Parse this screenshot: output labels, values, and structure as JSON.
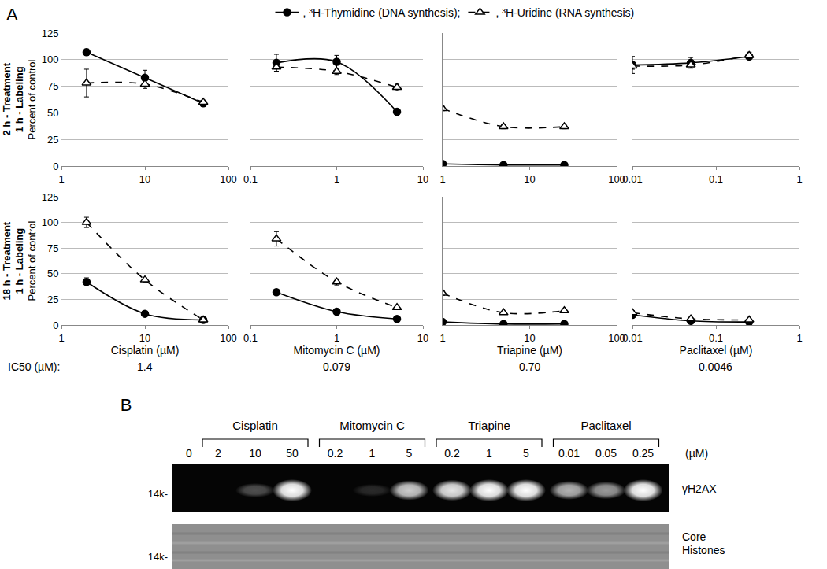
{
  "panel_label": "A",
  "ic50_label": "IC50 (µM):",
  "chart_data": [
    {
      "type": "line",
      "row_label": [
        "2 h - Treatment",
        "1 h - Labeling"
      ],
      "ylabel": "Percent of control",
      "log": "x",
      "grid": true,
      "x": [
        2,
        10,
        50
      ],
      "xlim": [
        1,
        100
      ],
      "xticks": [
        1,
        10,
        100
      ],
      "ylim": [
        0,
        125
      ],
      "yticks": [
        0,
        25,
        50,
        75,
        100,
        125
      ],
      "series": [
        {
          "name": ", ³H-Thymidine (DNA synthesis);",
          "color": "#000000",
          "marker": "circle",
          "line_style": "solid",
          "values": [
            107,
            83,
            59
          ],
          "errors": [
            3,
            7,
            2
          ]
        },
        {
          "name": ", ³H-Uridine (RNA synthesis)",
          "color": "#000000",
          "marker": "triangle-open",
          "line_style": "dashed",
          "values": [
            78,
            77,
            60
          ],
          "errors": [
            13,
            4,
            4
          ]
        }
      ]
    },
    {
      "type": "line",
      "tick_labels": "x",
      "log": "x",
      "grid": true,
      "x": [
        0.2,
        1,
        5
      ],
      "xlim": [
        0.1,
        10
      ],
      "xticks": [
        0.1,
        1,
        10
      ],
      "ylim": [
        0,
        125
      ],
      "yticks": [
        0,
        25,
        50,
        75,
        100,
        125
      ],
      "series": [
        {
          "name": ", ³H-Thymidine (DNA synthesis);",
          "color": "#000000",
          "marker": "circle",
          "line_style": "solid",
          "values": [
            97,
            98,
            51
          ],
          "errors": [
            8,
            6,
            2
          ]
        },
        {
          "name": ", ³H-Uridine (RNA synthesis)",
          "color": "#000000",
          "marker": "triangle-open",
          "line_style": "dashed",
          "values": [
            93,
            89,
            74
          ],
          "errors": [
            4,
            3,
            3
          ]
        }
      ]
    },
    {
      "type": "line",
      "tick_labels": "x",
      "log": "x",
      "grid": true,
      "x": [
        1,
        5,
        25
      ],
      "xlim": [
        1,
        100
      ],
      "xticks": [
        1,
        10,
        100
      ],
      "ylim": [
        0,
        125
      ],
      "yticks": [
        0,
        25,
        50,
        75,
        100,
        125
      ],
      "series": [
        {
          "name": ", ³H-Thymidine (DNA synthesis);",
          "color": "#000000",
          "marker": "circle",
          "line_style": "solid",
          "values": [
            2,
            1,
            1
          ],
          "errors": [
            1,
            1,
            1
          ]
        },
        {
          "name": ", ³H-Uridine (RNA synthesis)",
          "color": "#000000",
          "marker": "triangle-open",
          "line_style": "dashed",
          "values": [
            54,
            37,
            37
          ],
          "errors": [
            2,
            2,
            2
          ]
        }
      ]
    },
    {
      "type": "line",
      "tick_labels": "x",
      "log": "x",
      "grid": true,
      "x": [
        0.01,
        0.05,
        0.25
      ],
      "xlim": [
        0.01,
        1
      ],
      "xticks": [
        0.01,
        0.1,
        1
      ],
      "ylim": [
        0,
        125
      ],
      "yticks": [
        0,
        25,
        50,
        75,
        100,
        125
      ],
      "series": [
        {
          "name": ", ³H-Thymidine (DNA synthesis);",
          "color": "#000000",
          "marker": "circle",
          "line_style": "solid",
          "values": [
            95,
            97,
            103
          ],
          "errors": [
            8,
            5,
            4
          ]
        },
        {
          "name": ", ³H-Uridine (RNA synthesis)",
          "color": "#000000",
          "marker": "triangle-open",
          "line_style": "dashed",
          "values": [
            94,
            95,
            104
          ],
          "errors": [
            3,
            3,
            3
          ]
        }
      ]
    },
    {
      "type": "line",
      "row_label": [
        "18 h - Treatment",
        "1 h - Labeling"
      ],
      "ylabel": "Percent of control",
      "xlabel": "Cisplatin (µM)",
      "ic50": "1.4",
      "log": "x",
      "grid": true,
      "x": [
        2,
        10,
        50
      ],
      "xlim": [
        1,
        100
      ],
      "xticks": [
        1,
        10,
        100
      ],
      "ylim": [
        0,
        125
      ],
      "yticks": [
        0,
        25,
        50,
        75,
        100,
        125
      ],
      "series": [
        {
          "name": ", ³H-Thymidine (DNA synthesis);",
          "color": "#000000",
          "marker": "circle",
          "line_style": "solid",
          "values": [
            42,
            11,
            5
          ],
          "errors": [
            4,
            2,
            1
          ]
        },
        {
          "name": ", ³H-Uridine (RNA synthesis)",
          "color": "#000000",
          "marker": "triangle-open",
          "line_style": "dashed",
          "values": [
            100,
            44,
            5
          ],
          "errors": [
            5,
            2,
            1
          ]
        }
      ]
    },
    {
      "type": "line",
      "tick_labels": "x",
      "xlabel": "Mitomycin C (µM)",
      "ic50": "0.079",
      "log": "x",
      "grid": true,
      "x": [
        0.2,
        1,
        5
      ],
      "xlim": [
        0.1,
        10
      ],
      "xticks": [
        0.1,
        1,
        10
      ],
      "ylim": [
        0,
        125
      ],
      "yticks": [
        0,
        25,
        50,
        75,
        100,
        125
      ],
      "series": [
        {
          "name": ", ³H-Thymidine (DNA synthesis);",
          "color": "#000000",
          "marker": "circle",
          "line_style": "solid",
          "values": [
            32,
            13,
            6
          ],
          "errors": [
            2,
            1,
            1
          ]
        },
        {
          "name": ", ³H-Uridine (RNA synthesis)",
          "color": "#000000",
          "marker": "triangle-open",
          "line_style": "dashed",
          "values": [
            84,
            42,
            17
          ],
          "errors": [
            7,
            3,
            2
          ]
        }
      ]
    },
    {
      "type": "line",
      "tick_labels": "x",
      "xlabel": "Triapine (µM)",
      "ic50": "0.70",
      "log": "x",
      "grid": true,
      "x": [
        1,
        5,
        25
      ],
      "xlim": [
        1,
        100
      ],
      "xticks": [
        1,
        10,
        100
      ],
      "ylim": [
        0,
        125
      ],
      "yticks": [
        0,
        25,
        50,
        75,
        100,
        125
      ],
      "series": [
        {
          "name": ", ³H-Thymidine (DNA synthesis);",
          "color": "#000000",
          "marker": "circle",
          "line_style": "solid",
          "values": [
            3,
            1,
            1
          ],
          "errors": [
            1,
            1,
            1
          ]
        },
        {
          "name": ", ³H-Uridine (RNA synthesis)",
          "color": "#000000",
          "marker": "triangle-open",
          "line_style": "dashed",
          "values": [
            31,
            12,
            14
          ],
          "errors": [
            2,
            1,
            1
          ]
        }
      ]
    },
    {
      "type": "line",
      "tick_labels": "x",
      "xlabel": "Paclitaxel (µM)",
      "ic50": "0.0046",
      "log": "x",
      "grid": true,
      "x": [
        0.01,
        0.05,
        0.25
      ],
      "xlim": [
        0.01,
        1
      ],
      "xticks": [
        0.01,
        0.1,
        1
      ],
      "ylim": [
        0,
        125
      ],
      "yticks": [
        0,
        25,
        50,
        75,
        100,
        125
      ],
      "series": [
        {
          "name": ", ³H-Thymidine (DNA synthesis);",
          "color": "#000000",
          "marker": "circle",
          "line_style": "solid",
          "values": [
            10,
            4,
            3
          ],
          "errors": [
            1,
            1,
            1
          ]
        },
        {
          "name": ", ³H-Uridine (RNA synthesis)",
          "color": "#000000",
          "marker": "triangle-open",
          "line_style": "dashed",
          "values": [
            12,
            6,
            5
          ],
          "errors": [
            2,
            1,
            1
          ]
        }
      ]
    }
  ],
  "blot": {
    "panel_label": "B",
    "control": 0,
    "control_intensity": 0,
    "unit": "(µM)",
    "groups": [
      {
        "name": "Cisplatin",
        "concentrations": [
          2,
          10,
          50
        ],
        "intensity": [
          0,
          0.3,
          1
        ]
      },
      {
        "name": "Mitomycin C",
        "concentrations": [
          0.2,
          1,
          5
        ],
        "intensity": [
          0,
          0.15,
          0.8
        ]
      },
      {
        "name": "Triapine",
        "concentrations": [
          0.2,
          1,
          5
        ],
        "intensity": [
          0.9,
          1,
          1
        ]
      },
      {
        "name": "Paclitaxel",
        "concentrations": [
          0.01,
          0.05,
          0.25
        ],
        "intensity": [
          0.7,
          0.6,
          1
        ]
      }
    ],
    "rows": [
      {
        "label": [
          "γH2AX"
        ],
        "size_marker": "14k-"
      },
      {
        "label": [
          "Core",
          "Histones"
        ],
        "size_marker": "14k-"
      }
    ]
  }
}
